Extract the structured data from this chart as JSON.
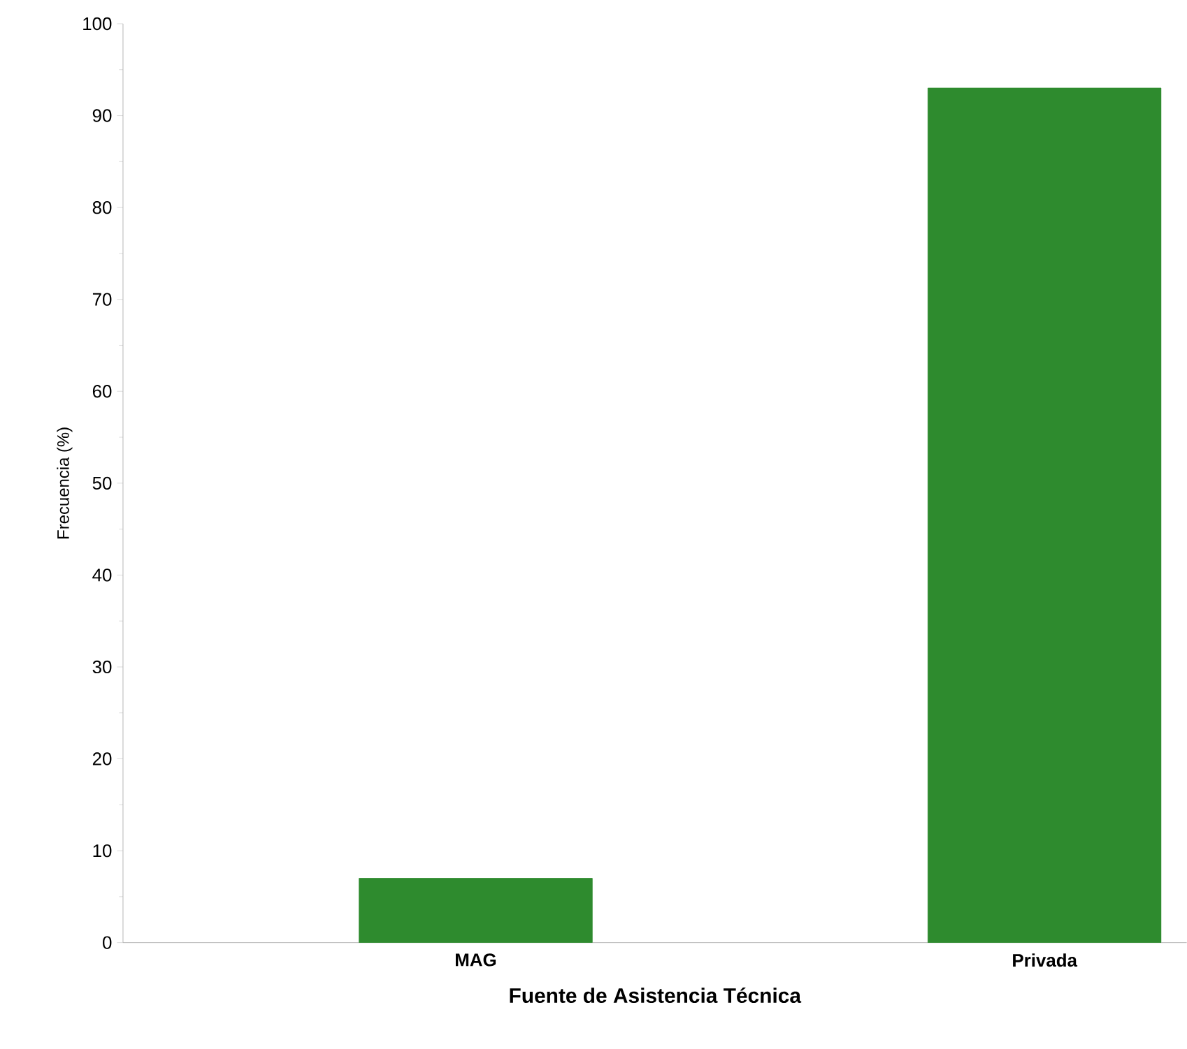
{
  "chart_data": {
    "type": "bar",
    "xlabel": "Fuente de Asistencia Técnica",
    "ylabel": "Frecuencia (%)",
    "categories": [
      "MAG",
      "Privada"
    ],
    "values": [
      7,
      93
    ],
    "color": "#2e8b2e",
    "ylim": [
      0,
      100
    ],
    "yticks": [
      0,
      10,
      20,
      30,
      40,
      50,
      60,
      70,
      80,
      90,
      100
    ],
    "grid": false
  }
}
